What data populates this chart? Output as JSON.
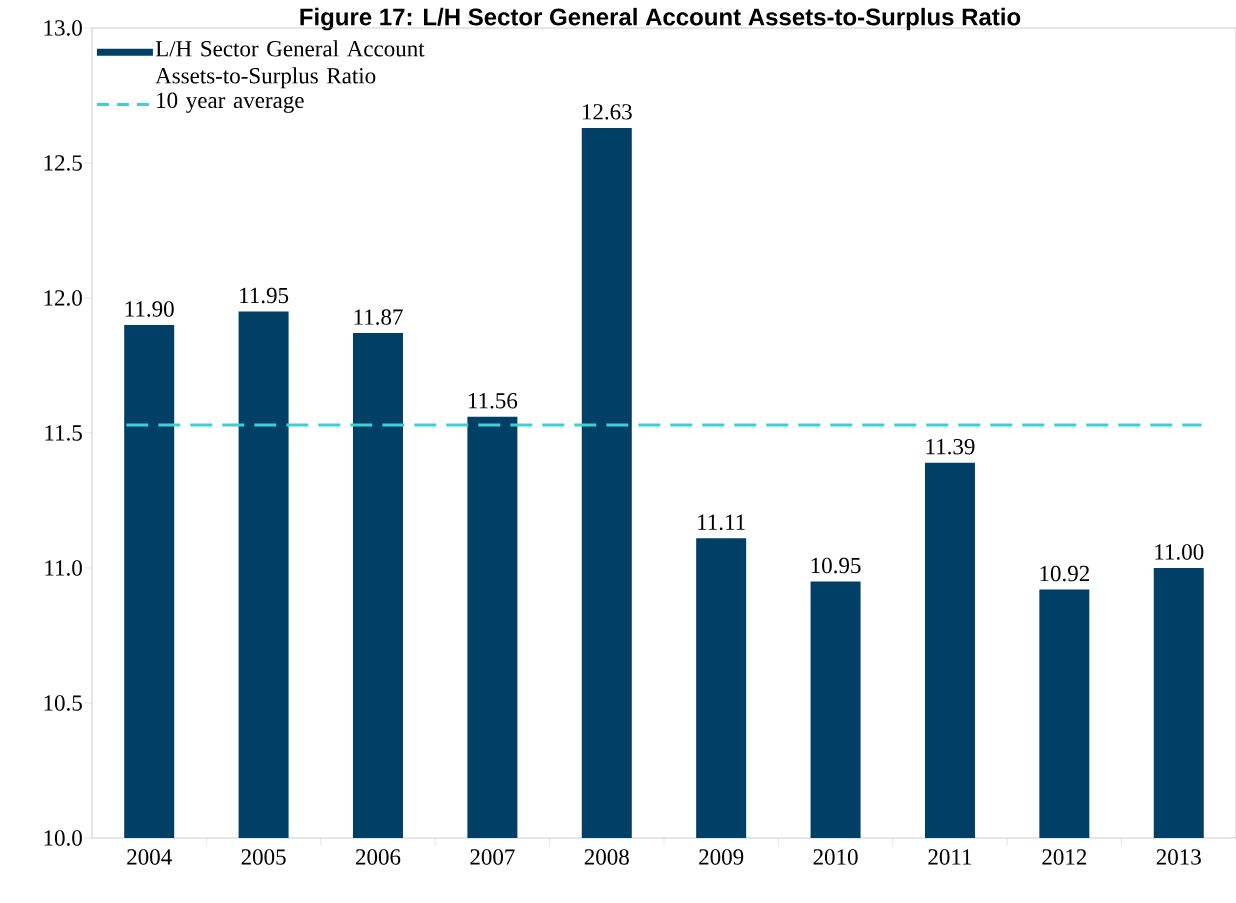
{
  "chart_data": {
    "type": "bar",
    "title": "Figure 17: L/H Sector General Account Assets-to-Surplus Ratio",
    "categories": [
      "2004",
      "2005",
      "2006",
      "2007",
      "2008",
      "2009",
      "2010",
      "2011",
      "2012",
      "2013"
    ],
    "series": [
      {
        "name": "L/H Sector General Account Assets-to-Surplus Ratio",
        "color": "#003f66",
        "values": [
          11.9,
          11.95,
          11.87,
          11.56,
          12.63,
          11.11,
          10.95,
          11.39,
          10.92,
          11.0
        ],
        "value_labels": [
          "11.90",
          "11.95",
          "11.87",
          "11.56",
          "12.63",
          "11.11",
          "10.95",
          "11.39",
          "10.92",
          "11.00"
        ]
      }
    ],
    "ylim": [
      10.0,
      13.0
    ],
    "yticks": [
      {
        "value": 10.0,
        "label": "10.0"
      },
      {
        "value": 10.5,
        "label": "10.5"
      },
      {
        "value": 11.0,
        "label": "11.0"
      },
      {
        "value": 11.5,
        "label": "11.5"
      },
      {
        "value": 12.0,
        "label": "12.0"
      },
      {
        "value": 12.5,
        "label": "12.5"
      },
      {
        "value": 13.0,
        "label": "13.0"
      }
    ],
    "ref_lines": [
      {
        "axis": "y",
        "value": 11.53,
        "label": "10 year average",
        "color": "#3ecfd5",
        "line_style": "dashed"
      }
    ],
    "legend": "top left",
    "grid": false
  }
}
